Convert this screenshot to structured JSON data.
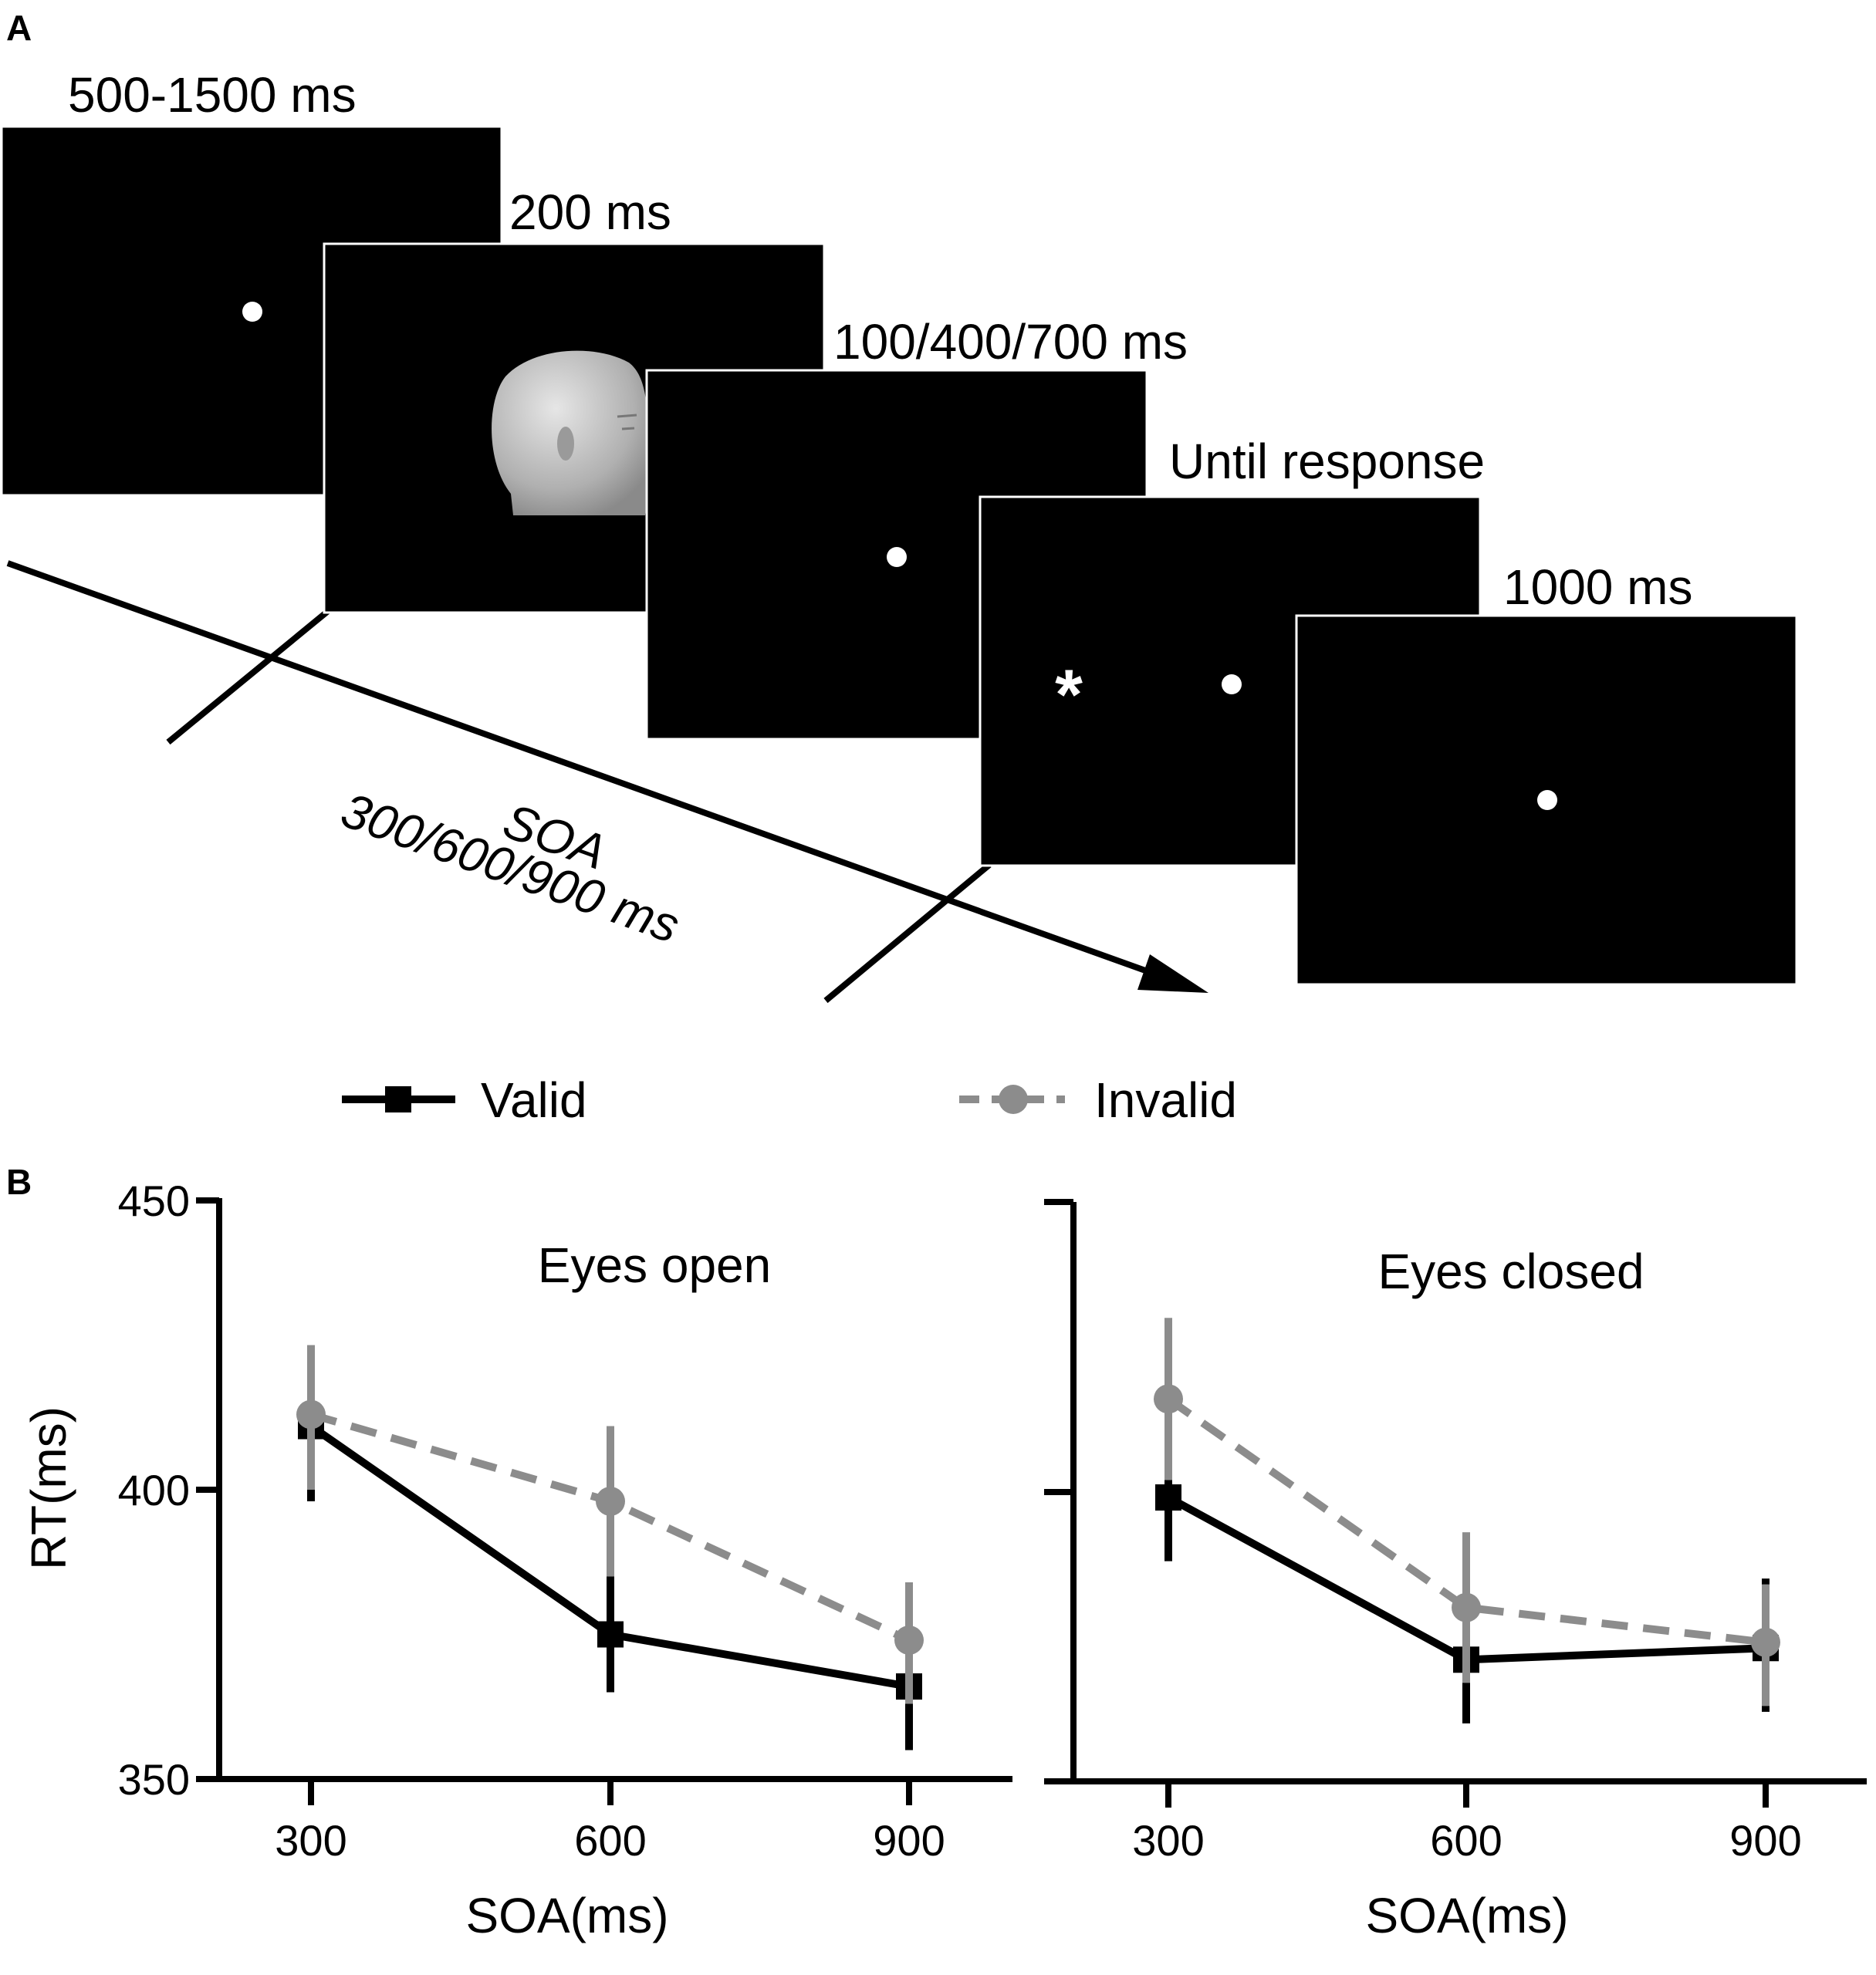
{
  "panel_a": {
    "letter": "A",
    "frames": [
      {
        "duration": "500-1500 ms",
        "content": "fixation-dot"
      },
      {
        "duration": "200 ms",
        "content": "face-cue"
      },
      {
        "duration": "100/400/700 ms",
        "content": "fixation-dot"
      },
      {
        "duration": "Until response",
        "content": "target-asterisk",
        "target": "*"
      },
      {
        "duration": "1000 ms",
        "content": "fixation-dot"
      }
    ],
    "soa_label": "SOA",
    "soa_values": "300/600/900 ms",
    "colors": {
      "screen": "#000000",
      "stimulus": "#ffffff",
      "face": "#bdbdbd"
    }
  },
  "panel_b": {
    "letter": "B",
    "legend": [
      {
        "label": "Valid",
        "color": "#000000",
        "marker": "square",
        "dash": false
      },
      {
        "label": "Invalid",
        "color": "#8c8c8c",
        "marker": "circle",
        "dash": true
      }
    ]
  },
  "chart_data": [
    {
      "type": "line",
      "title": "Eyes open",
      "xlabel": "SOA(ms)",
      "ylabel": "RT(ms)",
      "x": [
        300,
        600,
        900
      ],
      "xticks": [
        "300",
        "600",
        "900"
      ],
      "yticks": [
        "350",
        "400",
        "450"
      ],
      "ylim": [
        350,
        450
      ],
      "series": [
        {
          "name": "Valid",
          "values": [
            411,
            375,
            366
          ],
          "err_low": [
            398,
            365,
            355
          ],
          "err_high": [
            413,
            386,
            373
          ],
          "color": "#000000"
        },
        {
          "name": "Invalid",
          "values": [
            413,
            398,
            374
          ],
          "err_low": [
            400,
            385,
            363
          ],
          "err_high": [
            425,
            411,
            384
          ],
          "color": "#8c8c8c"
        }
      ]
    },
    {
      "type": "line",
      "title": "Eyes closed",
      "xlabel": "SOA(ms)",
      "ylabel": "",
      "x": [
        300,
        600,
        900
      ],
      "xticks": [
        "300",
        "600",
        "900"
      ],
      "yticks": [],
      "ylim": [
        350,
        450
      ],
      "series": [
        {
          "name": "Valid",
          "values": [
            399,
            371,
            373
          ],
          "err_low": [
            388,
            360,
            362
          ],
          "err_high": [
            410,
            382,
            385
          ],
          "color": "#000000"
        },
        {
          "name": "Invalid",
          "values": [
            416,
            380,
            374
          ],
          "err_low": [
            402,
            367,
            363
          ],
          "err_high": [
            430,
            393,
            384
          ],
          "color": "#8c8c8c"
        }
      ]
    }
  ]
}
